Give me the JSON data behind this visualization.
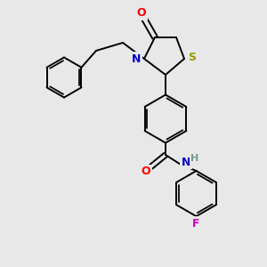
{
  "bg_color": "#e8e8e8",
  "atom_colors": {
    "O": "#ff0000",
    "N": "#0000cc",
    "S": "#999900",
    "F": "#cc00cc",
    "H": "#779988",
    "C": "#000000"
  },
  "bond_color": "#000000",
  "bond_width": 1.4
}
